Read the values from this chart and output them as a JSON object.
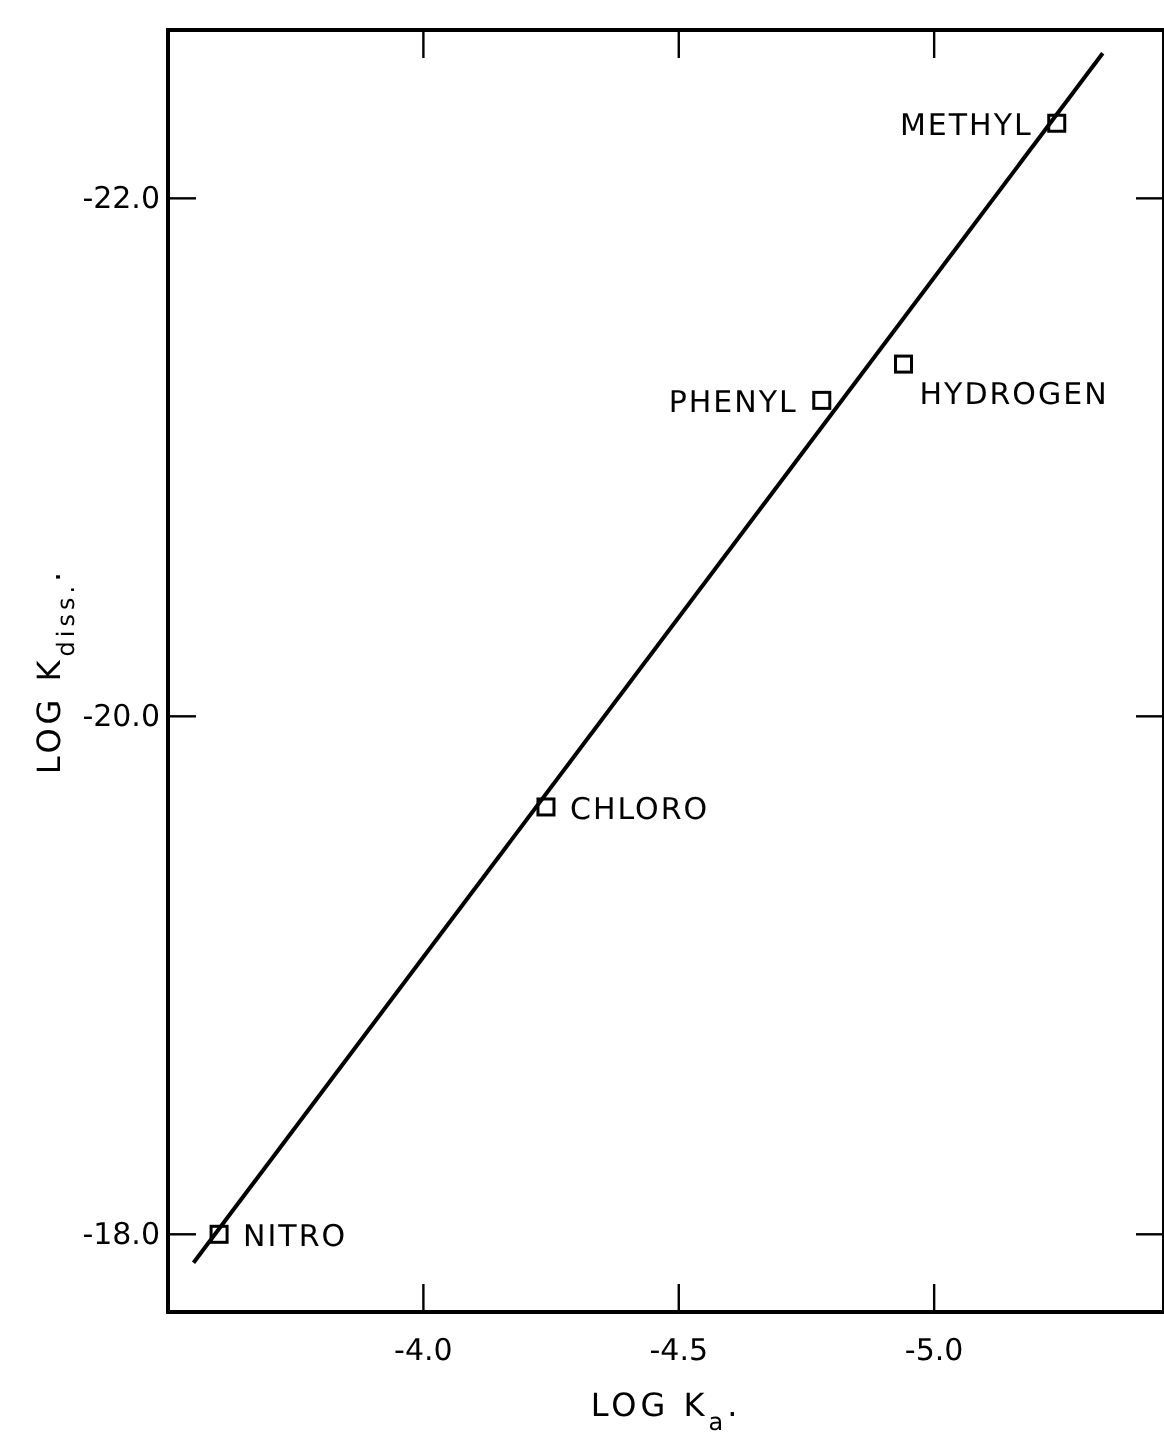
{
  "chart_data": {
    "type": "scatter",
    "xlabel": "LOG K$_{a}$.",
    "ylabel": "LOG K$_{diss.}$.",
    "xlim": [
      -3.5,
      -5.45
    ],
    "xticks": [
      {
        "value": -4,
        "label": "-4.0"
      },
      {
        "value": -4.5,
        "label": "-4.5"
      },
      {
        "value": -5,
        "label": "-5.0"
      }
    ],
    "ylim": [
      -17.7,
      -22.65
    ],
    "yticks": [
      {
        "value": -18,
        "label": "-18.0"
      },
      {
        "value": -20,
        "label": "-20.0"
      },
      {
        "value": -22,
        "label": "-22.0"
      }
    ],
    "grid": false,
    "marker": "square",
    "series": [
      {
        "color": "#000000",
        "x": [
          -3.6,
          -4.24,
          -4.78,
          -4.94,
          -5.24
        ],
        "values": [
          -18.0,
          -19.65,
          -21.22,
          -21.36,
          -22.29
        ]
      },
      {
        "type": "line",
        "color": "#000000",
        "marker": "none",
        "line_style": "solid",
        "x": [
          -3.55,
          -5.33
        ],
        "values": [
          -17.89,
          -22.56
        ]
      }
    ],
    "annotations": [
      {
        "text": "NITRO",
        "x": -3.6,
        "y": -18.0
      },
      {
        "text": "CHLORO",
        "x": -4.24,
        "y": -19.65
      },
      {
        "text": "PHENYL",
        "x": -4.78,
        "y": -21.22
      },
      {
        "text": "HYDROGEN",
        "x": -4.94,
        "y": -21.36
      },
      {
        "text": "METHYL",
        "x": -5.24,
        "y": -22.29
      }
    ]
  }
}
